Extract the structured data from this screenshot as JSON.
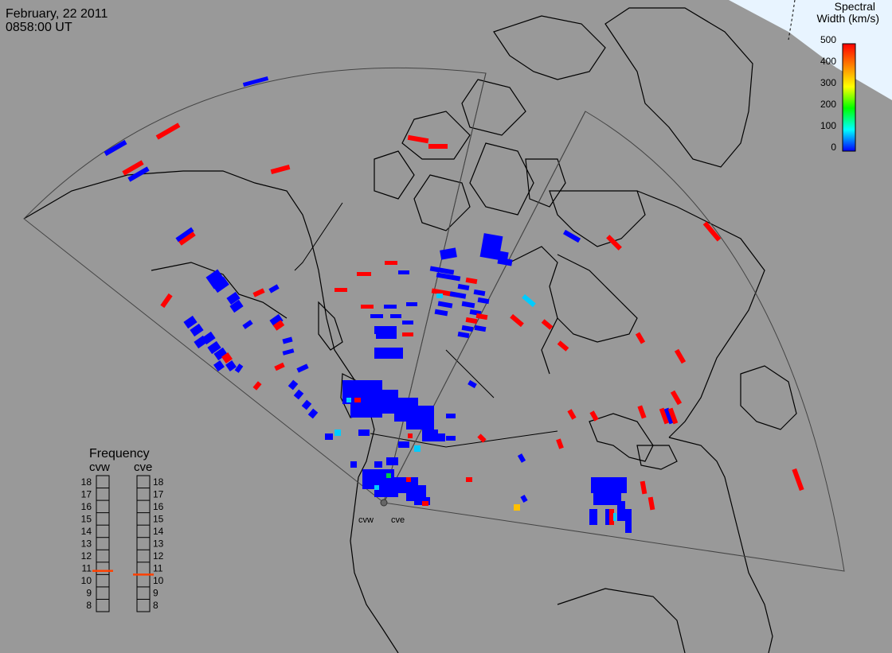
{
  "header": {
    "date": "February, 22 2011",
    "time": "0858:00 UT"
  },
  "colorbar": {
    "title_line1": "Spectral",
    "title_line2": "Width (km/s)",
    "ticks": [
      "500",
      "400",
      "300",
      "200",
      "100",
      "0"
    ],
    "colors": [
      "#0000ff",
      "#00ffff",
      "#00ff00",
      "#ffff00",
      "#ff8000",
      "#ff0000"
    ]
  },
  "frequency": {
    "title": "Frequency",
    "left_label": "cvw",
    "right_label": "cve",
    "scale": [
      "18",
      "17",
      "16",
      "15",
      "14",
      "13",
      "12",
      "11",
      "10",
      "9",
      "8"
    ],
    "cvw_value": 10.8,
    "cve_value": 10.5,
    "marker_color": "#ff4000"
  },
  "radars": {
    "west": "cvw",
    "east": "cve"
  },
  "colors": {
    "background": "#999999",
    "coast": "#000000",
    "fov": "#555555",
    "high_width": "#ff0000",
    "low_width": "#0000ff",
    "cyan": "#00ccff",
    "yellow": "#ffc000"
  }
}
